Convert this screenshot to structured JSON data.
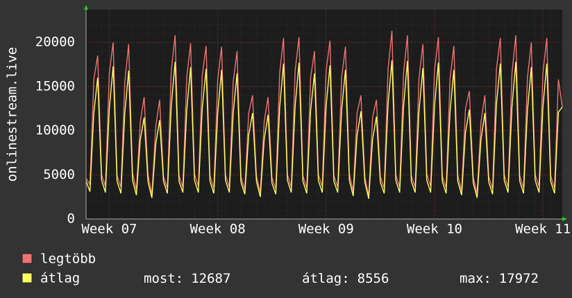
{
  "chart_data": {
    "type": "line",
    "y_label": "onlinestream.live",
    "x": [
      0,
      0.25,
      0.5,
      0.75,
      1,
      1.25,
      1.5,
      1.75,
      2,
      2.25,
      2.5,
      2.75,
      3,
      3.25,
      3.5,
      3.75,
      4,
      4.25,
      4.5,
      4.75,
      5,
      5.25,
      5.5,
      5.75,
      6,
      6.25,
      6.5,
      6.75,
      7,
      7.25,
      7.5,
      7.75,
      8,
      8.25,
      8.5,
      8.75,
      9,
      9.25,
      9.5,
      9.75,
      10,
      10.25,
      10.5,
      10.75,
      11,
      11.25,
      11.5,
      11.75,
      12,
      12.25,
      12.5,
      12.75,
      13,
      13.25,
      13.5,
      13.75,
      14,
      14.25,
      14.5,
      14.75,
      15,
      15.25,
      15.5,
      15.75,
      16,
      16.25,
      16.5,
      16.75,
      17,
      17.25,
      17.5,
      17.75,
      18,
      18.25,
      18.5,
      18.75,
      19,
      19.25,
      19.5,
      19.75,
      20,
      20.25,
      20.5,
      20.75,
      21,
      21.25,
      21.5,
      21.75,
      22,
      22.25,
      22.5,
      22.75,
      23,
      23.25,
      23.5,
      23.75,
      24,
      24.25,
      24.5,
      24.75,
      25,
      25.25,
      25.5,
      25.75,
      26,
      26.25,
      26.5,
      26.75,
      27,
      27.25,
      27.5,
      27.75,
      28,
      28.25,
      28.5,
      28.75,
      29,
      29.25,
      29.5,
      29.75,
      30,
      30.25,
      30.5,
      30.75
    ],
    "series": [
      {
        "name": "legtöbb",
        "color": "#f07373",
        "values": [
          4600,
          3900,
          15800,
          18500,
          5000,
          3700,
          16500,
          20000,
          4900,
          3600,
          15500,
          19800,
          5200,
          3300,
          11000,
          13800,
          5000,
          2800,
          10500,
          13500,
          4800,
          3500,
          16800,
          20800,
          4900,
          3600,
          16000,
          19900,
          5100,
          3700,
          16200,
          19600,
          4900,
          3500,
          15800,
          19500,
          5000,
          3600,
          15500,
          19000,
          4800,
          3300,
          12000,
          14000,
          4900,
          3000,
          11000,
          13800,
          4700,
          3400,
          16500,
          20500,
          5000,
          3600,
          16800,
          20600,
          4900,
          3500,
          16000,
          19000,
          5000,
          3700,
          16800,
          20200,
          4900,
          3600,
          16000,
          19500,
          5100,
          3100,
          12000,
          14000,
          4800,
          2600,
          11500,
          13500,
          4800,
          3500,
          17000,
          21300,
          5000,
          3600,
          16500,
          20800,
          4900,
          3600,
          16000,
          19800,
          5100,
          3700,
          16800,
          20600,
          4900,
          3500,
          15800,
          19600,
          5000,
          3200,
          12500,
          14500,
          4700,
          2900,
          11000,
          14000,
          4800,
          3400,
          17000,
          20500,
          5000,
          3600,
          16500,
          20800,
          4900,
          3500,
          16000,
          20000,
          5000,
          3700,
          16500,
          20500,
          4900,
          3500,
          15800,
          12700
        ]
      },
      {
        "name": "átlag",
        "color": "#ffff66",
        "values": [
          4300,
          3100,
          12000,
          16000,
          4400,
          3000,
          12500,
          17300,
          4300,
          2900,
          12000,
          16800,
          4400,
          2700,
          9000,
          11500,
          4200,
          2400,
          8500,
          11200,
          4300,
          2900,
          12800,
          17800,
          4300,
          3000,
          12300,
          17200,
          4400,
          3000,
          12500,
          17000,
          4300,
          2900,
          12000,
          16900,
          4400,
          3000,
          12000,
          16500,
          4200,
          2800,
          9500,
          12000,
          4300,
          2500,
          9000,
          11800,
          4100,
          2800,
          12600,
          17600,
          4400,
          3000,
          12800,
          17700,
          4300,
          2900,
          12300,
          16500,
          4400,
          3000,
          12800,
          17400,
          4300,
          3000,
          12300,
          16900,
          4400,
          2600,
          9500,
          12200,
          4200,
          2300,
          9000,
          11600,
          4200,
          2900,
          13000,
          17972,
          4400,
          3000,
          12700,
          17900,
          4300,
          3000,
          12300,
          17100,
          4400,
          3000,
          12800,
          17700,
          4300,
          2900,
          12100,
          16900,
          4300,
          2700,
          9800,
          12400,
          4100,
          2400,
          9000,
          12000,
          4200,
          2800,
          13000,
          17600,
          4400,
          3000,
          12700,
          17800,
          4300,
          2900,
          12300,
          17200,
          4400,
          3000,
          12700,
          17600,
          4300,
          2900,
          12100,
          12687
        ]
      }
    ],
    "xlim": [
      0,
      30.75
    ],
    "xticks": [
      {
        "value": 1.5,
        "label": "Week 07"
      },
      {
        "value": 8.5,
        "label": "Week 08"
      },
      {
        "value": 15.5,
        "label": "Week 09"
      },
      {
        "value": 22.5,
        "label": "Week 10"
      },
      {
        "value": 29.5,
        "label": "Week 11"
      }
    ],
    "ylim": [
      0,
      23700
    ],
    "yticks": [
      0,
      5000,
      10000,
      15000,
      20000
    ],
    "grid": true,
    "stats": [
      {
        "label": "most:",
        "value": 12687
      },
      {
        "label": "átlag:",
        "value": 8556
      },
      {
        "label": "max:",
        "value": 17972
      }
    ]
  }
}
